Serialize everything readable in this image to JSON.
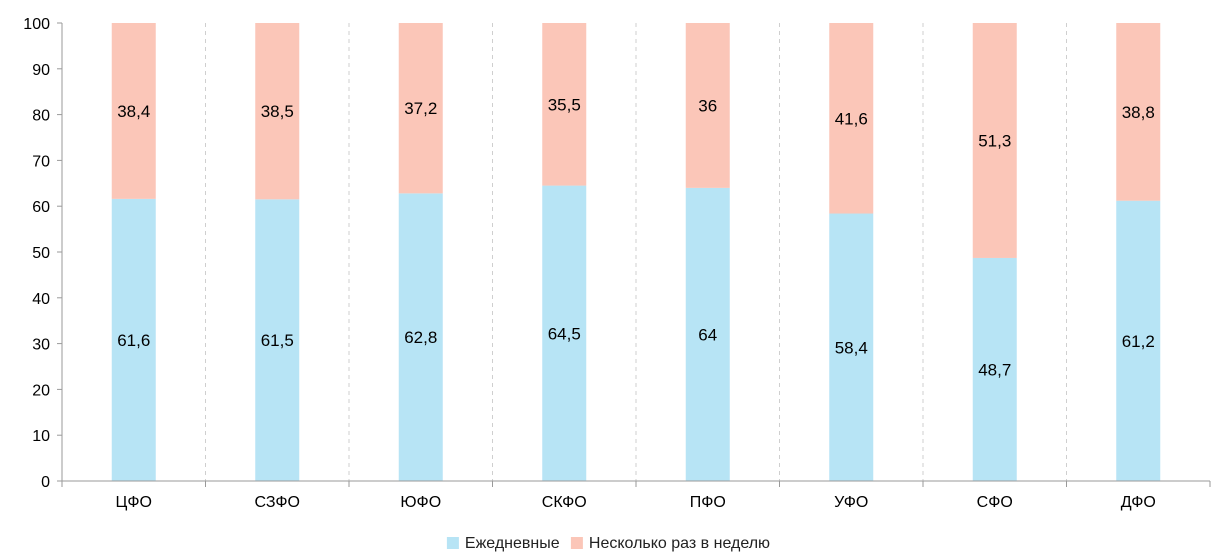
{
  "chart_data": {
    "type": "bar",
    "stacked": true,
    "title": "",
    "xlabel": "",
    "ylabel": "",
    "ylim": [
      0,
      100
    ],
    "yticks": [
      0,
      10,
      20,
      30,
      40,
      50,
      60,
      70,
      80,
      90,
      100
    ],
    "categories": [
      "ЦФО",
      "СЗФО",
      "ЮФО",
      "СКФО",
      "ПФО",
      "УФО",
      "СФО",
      "ДФО"
    ],
    "series": [
      {
        "name": "Ежедневные",
        "color": "#b7e4f5",
        "values": [
          61.6,
          61.5,
          62.8,
          64.5,
          64,
          58.4,
          48.7,
          61.2
        ],
        "labels": [
          "61,6",
          "61,5",
          "62,8",
          "64,5",
          "64",
          "58,4",
          "48,7",
          "61,2"
        ]
      },
      {
        "name": "Несколько раз в неделю",
        "color": "#fbc6b8",
        "values": [
          38.4,
          38.5,
          37.2,
          35.5,
          36,
          41.6,
          51.3,
          38.8
        ],
        "labels": [
          "38,4",
          "38,5",
          "37,2",
          "35,5",
          "36",
          "41,6",
          "51,3",
          "38,8"
        ]
      }
    ],
    "grid": "vertical-dashed-separators",
    "legend": "bottom-center"
  }
}
